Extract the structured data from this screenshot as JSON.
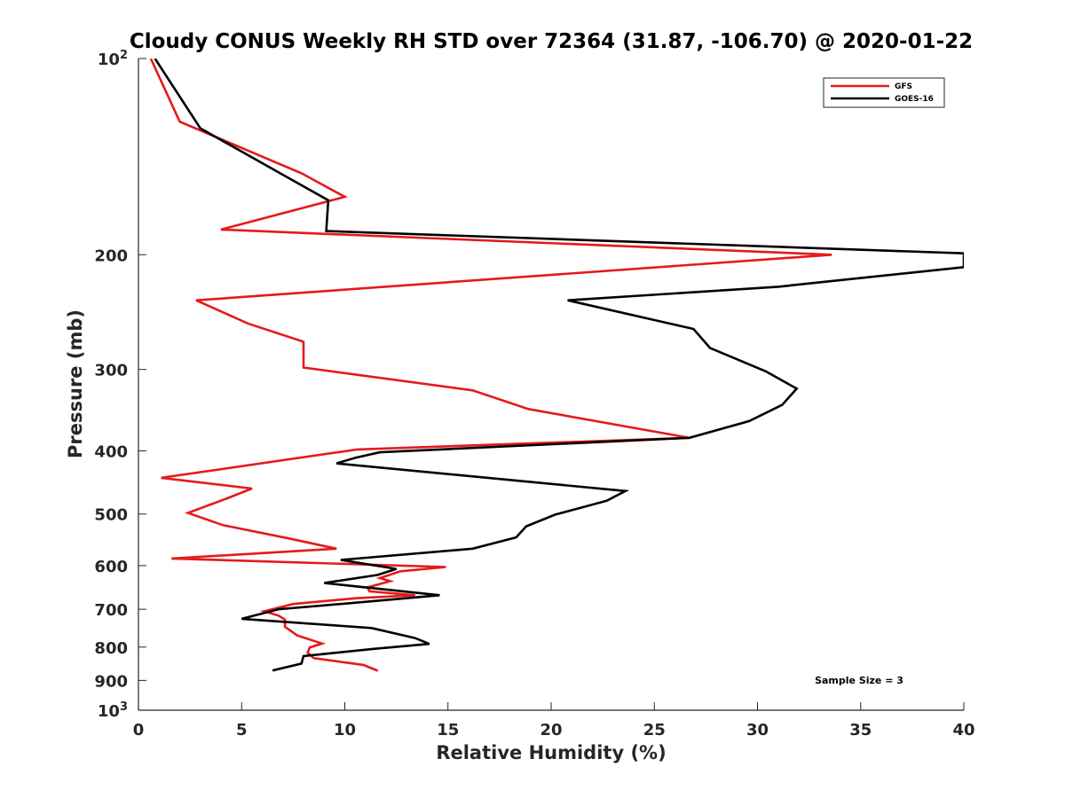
{
  "chart_data": {
    "type": "line",
    "title": "Cloudy CONUS Weekly RH STD over 72364 (31.87, -106.70) @ 2020-01-22",
    "xlabel": "Relative Humidity (%)",
    "ylabel": "Pressure (mb)",
    "xlim": [
      0,
      40
    ],
    "ylim": [
      100,
      1000
    ],
    "y_scale": "log",
    "y_reversed": true,
    "xticks": [
      0,
      5,
      10,
      15,
      20,
      25,
      30,
      35,
      40
    ],
    "yticks": [
      {
        "value": 100,
        "label": "10",
        "sup": "2"
      },
      {
        "value": 200,
        "label": "200",
        "sup": ""
      },
      {
        "value": 300,
        "label": "300",
        "sup": ""
      },
      {
        "value": 400,
        "label": "400",
        "sup": ""
      },
      {
        "value": 500,
        "label": "500",
        "sup": ""
      },
      {
        "value": 600,
        "label": "600",
        "sup": ""
      },
      {
        "value": 700,
        "label": "700",
        "sup": ""
      },
      {
        "value": 800,
        "label": "800",
        "sup": ""
      },
      {
        "value": 900,
        "label": "900",
        "sup": ""
      },
      {
        "value": 1000,
        "label": "10",
        "sup": "3"
      }
    ],
    "legend_position": "top-right",
    "annotation": "Sample Size = 3",
    "series": [
      {
        "name": "GFS",
        "color": "#e41a1c",
        "points": [
          [
            0.6,
            100
          ],
          [
            2.0,
            125
          ],
          [
            7.9,
            150
          ],
          [
            10.0,
            163
          ],
          [
            4.0,
            183
          ],
          [
            33.6,
            200
          ],
          [
            2.8,
            235
          ],
          [
            5.3,
            255
          ],
          [
            8.0,
            272
          ],
          [
            8.0,
            298
          ],
          [
            16.2,
            323
          ],
          [
            18.9,
            345
          ],
          [
            26.7,
            382
          ],
          [
            10.6,
            398
          ],
          [
            1.1,
            440
          ],
          [
            5.5,
            457
          ],
          [
            4.3,
            473
          ],
          [
            2.4,
            498
          ],
          [
            4.1,
            520
          ],
          [
            7.3,
            545
          ],
          [
            9.6,
            565
          ],
          [
            1.6,
            585
          ],
          [
            14.9,
            603
          ],
          [
            12.7,
            612
          ],
          [
            11.7,
            627
          ],
          [
            12.2,
            634
          ],
          [
            11.1,
            648
          ],
          [
            11.2,
            657
          ],
          [
            13.4,
            666
          ],
          [
            10.6,
            673
          ],
          [
            7.5,
            687
          ],
          [
            6.1,
            705
          ],
          [
            6.8,
            716
          ],
          [
            7.1,
            726
          ],
          [
            7.1,
            745
          ],
          [
            7.7,
            768
          ],
          [
            8.9,
            790
          ],
          [
            8.3,
            801
          ],
          [
            8.2,
            816
          ],
          [
            8.5,
            832
          ],
          [
            10.9,
            852
          ],
          [
            11.6,
            870
          ]
        ]
      },
      {
        "name": "GOES-16",
        "color": "#000000",
        "points": [
          [
            0.8,
            100
          ],
          [
            3.0,
            128
          ],
          [
            7.2,
            152
          ],
          [
            9.2,
            165
          ],
          [
            9.1,
            184
          ],
          [
            40.0,
            199
          ],
          [
            40.0,
            209
          ],
          [
            31.0,
            224
          ],
          [
            20.8,
            235
          ],
          [
            26.9,
            260
          ],
          [
            27.7,
            278
          ],
          [
            30.4,
            302
          ],
          [
            31.9,
            321
          ],
          [
            31.2,
            340
          ],
          [
            29.6,
            360
          ],
          [
            26.7,
            382
          ],
          [
            11.7,
            402
          ],
          [
            10.5,
            410
          ],
          [
            9.6,
            418
          ],
          [
            23.6,
            461
          ],
          [
            22.7,
            477
          ],
          [
            20.2,
            501
          ],
          [
            18.8,
            522
          ],
          [
            18.3,
            543
          ],
          [
            16.2,
            565
          ],
          [
            9.8,
            588
          ],
          [
            12.5,
            607
          ],
          [
            11.6,
            620
          ],
          [
            9.0,
            638
          ],
          [
            14.6,
            666
          ],
          [
            10.3,
            685
          ],
          [
            6.8,
            700
          ],
          [
            5.0,
            724
          ],
          [
            11.3,
            748
          ],
          [
            13.4,
            775
          ],
          [
            14.1,
            791
          ],
          [
            11.4,
            805
          ],
          [
            8.0,
            826
          ],
          [
            7.9,
            848
          ],
          [
            6.5,
            869
          ]
        ]
      }
    ]
  }
}
